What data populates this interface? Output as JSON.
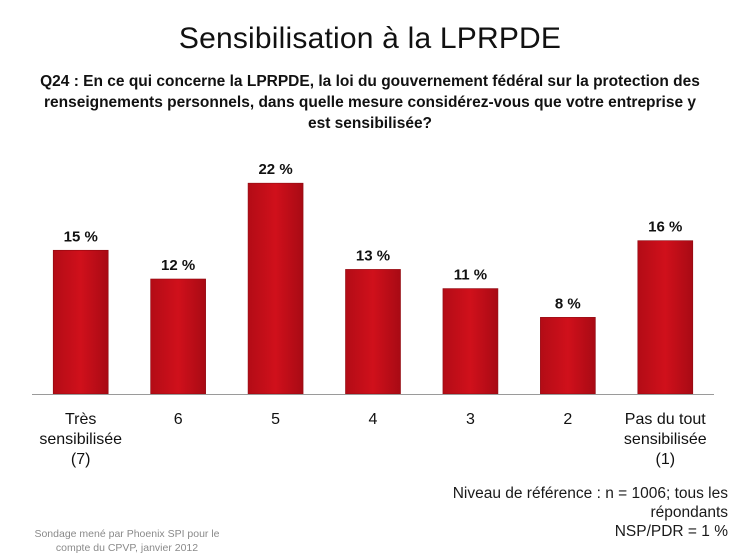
{
  "slide": {
    "title": "Sensibilisation à la LPRPDE",
    "question": "Q24 : En ce qui concerne la LPRPDE, la loi du gouvernement fédéral sur la protection des renseignements personnels, dans quelle mesure considérez-vous que votre entreprise y est sensibilisée?",
    "note_lines": [
      "Niveau de référence : n = 1006; tous les",
      "répondants",
      "NSP/PDR = 1 %"
    ],
    "source_lines": [
      "Sondage mené par Phoenix SPI pour le",
      "compte du CPVP, janvier 2012"
    ]
  },
  "chart_data": {
    "type": "bar",
    "categories": [
      [
        "Très",
        "sensibilisée",
        "(7)"
      ],
      [
        "6"
      ],
      [
        "5"
      ],
      [
        "4"
      ],
      [
        "3"
      ],
      [
        "2"
      ],
      [
        "Pas du tout",
        "sensibilisée",
        "(1)"
      ]
    ],
    "values": [
      15,
      12,
      22,
      13,
      11,
      8,
      16
    ],
    "data_labels": [
      "15 %",
      "12 %",
      "22 %",
      "13 %",
      "11 %",
      "8 %",
      "16 %"
    ],
    "bar_color": "#d0101b",
    "ylim": [
      0,
      24
    ],
    "grid": false
  }
}
